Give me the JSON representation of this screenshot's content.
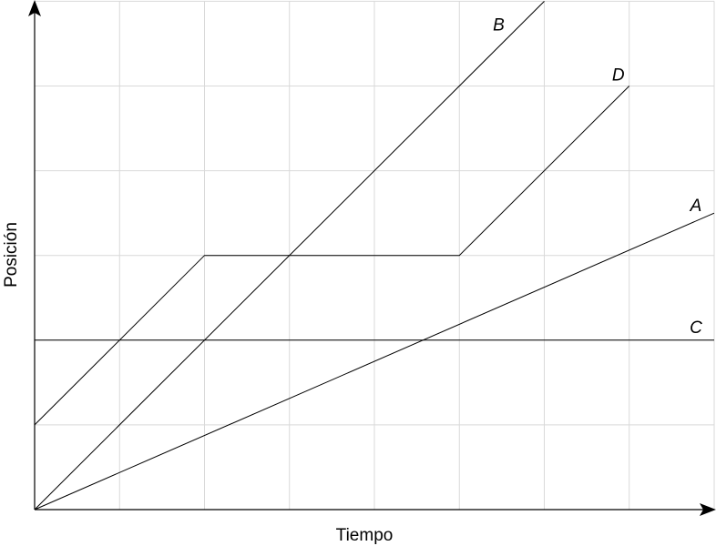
{
  "chart_data": {
    "type": "line",
    "title": "",
    "xlabel": "Tiempo",
    "ylabel": "Posición",
    "xlim": [
      0,
      8
    ],
    "ylim": [
      0,
      6
    ],
    "grid": true,
    "series": [
      {
        "name": "A",
        "x": [
          0,
          8
        ],
        "y": [
          0,
          3.5
        ]
      },
      {
        "name": "B",
        "x": [
          0,
          6
        ],
        "y": [
          0,
          6
        ]
      },
      {
        "name": "C",
        "x": [
          0,
          8
        ],
        "y": [
          2,
          2
        ]
      },
      {
        "name": "D",
        "x": [
          0,
          2,
          5,
          7
        ],
        "y": [
          1,
          3,
          3,
          5
        ]
      }
    ]
  }
}
